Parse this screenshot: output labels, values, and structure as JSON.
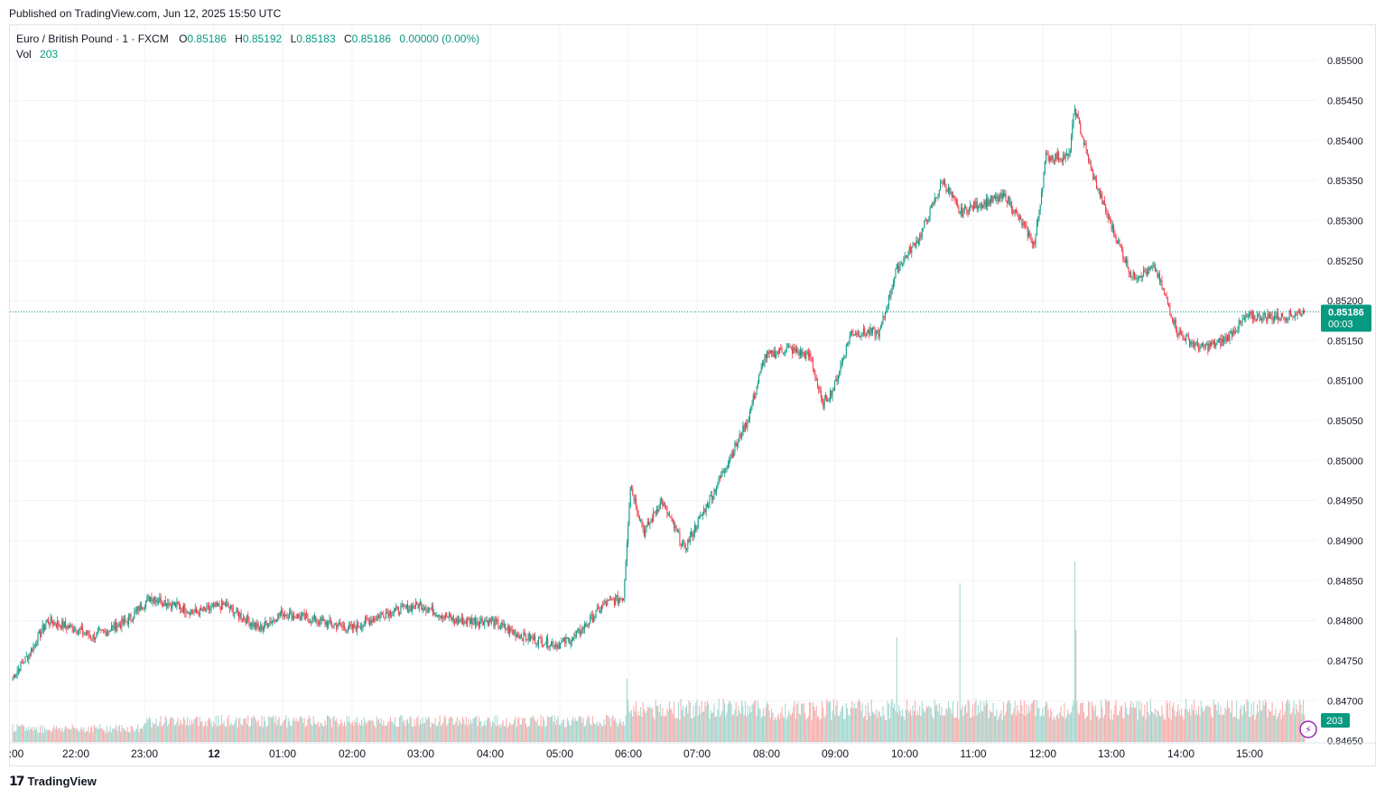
{
  "header": {
    "published": "Published on TradingView.com, Jun 12, 2025 15:50 UTC"
  },
  "legend": {
    "symbol": "Euro / British Pound · 1 · FXCM",
    "open_label": "O",
    "open": "0.85186",
    "high_label": "H",
    "high": "0.85192",
    "low_label": "L",
    "low": "0.85183",
    "close_label": "C",
    "close": "0.85186",
    "change": "0.00000 (0.00%)",
    "vol_label": "Vol",
    "vol": "203"
  },
  "price_badge": {
    "price": "0.85186",
    "countdown": "00:03"
  },
  "volume_badge": "203",
  "footer": {
    "brand": "TradingView"
  },
  "colors": {
    "up": "#089981",
    "down": "#f23645",
    "up_vol": "#9ed5cc",
    "down_vol": "#f7a9a7",
    "grid": "#f0f3fa",
    "text": "#131722"
  },
  "chart_data": {
    "type": "candlestick",
    "title": "Euro / British Pound · 1 · FXCM",
    "interval": "1 minute",
    "ylim": [
      0.84645,
      0.85525
    ],
    "y_ticks": [
      "0.85500",
      "0.85450",
      "0.85400",
      "0.85350",
      "0.85300",
      "0.85250",
      "0.85200",
      "0.85150",
      "0.85100",
      "0.85050",
      "0.85000",
      "0.84950",
      "0.84900",
      "0.84850",
      "0.84800",
      "0.84750",
      "0.84700",
      "0.84650"
    ],
    "x_ticks": [
      ":00",
      "22:00",
      "23:00",
      "12",
      "01:00",
      "02:00",
      "03:00",
      "04:00",
      "05:00",
      "06:00",
      "07:00",
      "08:00",
      "09:00",
      "10:00",
      "11:00",
      "12:00",
      "13:00",
      "14:00",
      "15:00"
    ],
    "last_price": 0.85186,
    "last_volume": 203,
    "grid": true,
    "approx_close_path": [
      {
        "t": "21:05",
        "close": 0.8473
      },
      {
        "t": "21:20",
        "close": 0.8476
      },
      {
        "t": "21:35",
        "close": 0.848
      },
      {
        "t": "22:00",
        "close": 0.8479
      },
      {
        "t": "22:15",
        "close": 0.8478
      },
      {
        "t": "22:45",
        "close": 0.848
      },
      {
        "t": "23:05",
        "close": 0.8483
      },
      {
        "t": "23:45",
        "close": 0.8481
      },
      {
        "t": "00:10",
        "close": 0.8482
      },
      {
        "t": "00:40",
        "close": 0.8479
      },
      {
        "t": "01:00",
        "close": 0.8481
      },
      {
        "t": "01:30",
        "close": 0.848
      },
      {
        "t": "02:00",
        "close": 0.8479
      },
      {
        "t": "02:30",
        "close": 0.8481
      },
      {
        "t": "03:00",
        "close": 0.8482
      },
      {
        "t": "03:30",
        "close": 0.848
      },
      {
        "t": "04:00",
        "close": 0.848
      },
      {
        "t": "04:30",
        "close": 0.8478
      },
      {
        "t": "05:00",
        "close": 0.8477
      },
      {
        "t": "05:15",
        "close": 0.8478
      },
      {
        "t": "05:40",
        "close": 0.8482
      },
      {
        "t": "05:57",
        "close": 0.8483
      },
      {
        "t": "06:03",
        "close": 0.8497
      },
      {
        "t": "06:15",
        "close": 0.8491
      },
      {
        "t": "06:30",
        "close": 0.8495
      },
      {
        "t": "06:50",
        "close": 0.8489
      },
      {
        "t": "07:15",
        "close": 0.8496
      },
      {
        "t": "07:45",
        "close": 0.8505
      },
      {
        "t": "08:00",
        "close": 0.8513
      },
      {
        "t": "08:20",
        "close": 0.8514
      },
      {
        "t": "08:40",
        "close": 0.8513
      },
      {
        "t": "08:50",
        "close": 0.8507
      },
      {
        "t": "09:00",
        "close": 0.8509
      },
      {
        "t": "09:15",
        "close": 0.8516
      },
      {
        "t": "09:40",
        "close": 0.8516
      },
      {
        "t": "09:55",
        "close": 0.8524
      },
      {
        "t": "10:15",
        "close": 0.8528
      },
      {
        "t": "10:35",
        "close": 0.8535
      },
      {
        "t": "10:50",
        "close": 0.8531
      },
      {
        "t": "11:05",
        "close": 0.8532
      },
      {
        "t": "11:30",
        "close": 0.8533
      },
      {
        "t": "11:55",
        "close": 0.8527
      },
      {
        "t": "12:05",
        "close": 0.8538
      },
      {
        "t": "12:25",
        "close": 0.8538
      },
      {
        "t": "12:30",
        "close": 0.8544
      },
      {
        "t": "12:45",
        "close": 0.8536
      },
      {
        "t": "13:00",
        "close": 0.853
      },
      {
        "t": "13:20",
        "close": 0.8523
      },
      {
        "t": "13:40",
        "close": 0.8524
      },
      {
        "t": "14:00",
        "close": 0.8516
      },
      {
        "t": "14:20",
        "close": 0.8514
      },
      {
        "t": "14:40",
        "close": 0.8515
      },
      {
        "t": "15:00",
        "close": 0.8518
      },
      {
        "t": "15:30",
        "close": 0.8518
      },
      {
        "t": "15:50",
        "close": 0.85186
      }
    ]
  }
}
